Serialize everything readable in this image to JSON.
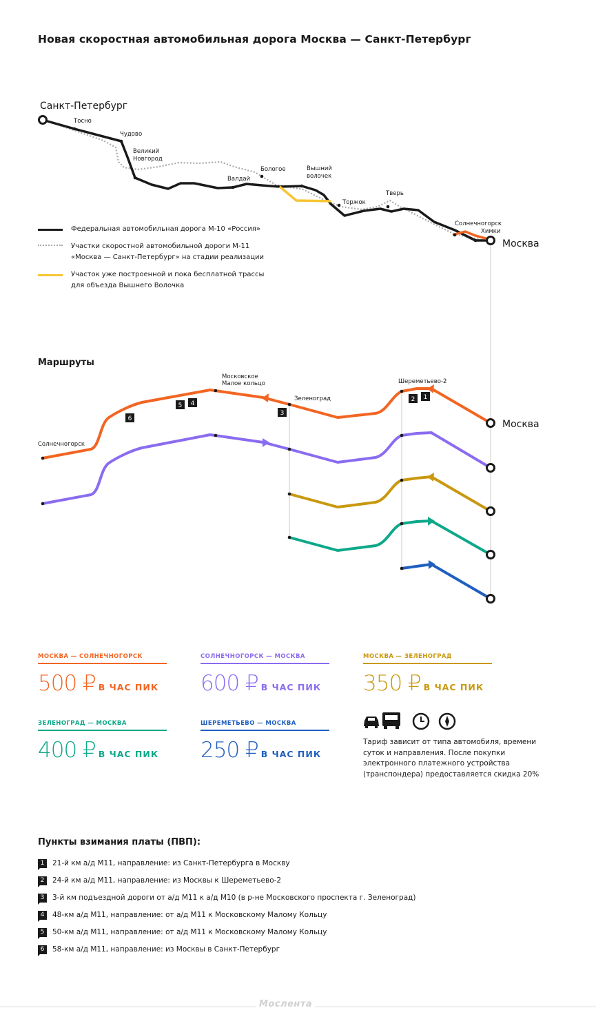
{
  "title": "Новая скоростная автомобильная дорога Москва — Санкт-Петербург",
  "map": {
    "cities": {
      "spb": "Санкт-Петербург",
      "tosno": "Тосно",
      "chudovo": "Чудово",
      "novgorod1": "Великий",
      "novgorod2": "Новгород",
      "valday": "Валдай",
      "bologoe": "Бологое",
      "volochek1": "Вышний",
      "volochek2": "волочек",
      "torzhok": "Торжок",
      "tver": "Тверь",
      "solnech": "Солнечногорск",
      "khimki": "Химки",
      "moscow": "Москва"
    },
    "legend": [
      {
        "label": "Федеральная автомобильная дорога М-10 «Россия»",
        "color": "#1a1a1a"
      },
      {
        "label": "Участки скоростной автомобильной дороги М-11",
        "label2": "«Москва — Санкт-Петербург» на стадии реализации",
        "color": "#a8a8a8"
      },
      {
        "label": "Участок уже построенной и пока бесплатной трассы",
        "label2": "для объезда Вышнего Волочка",
        "color": "#f6c533"
      }
    ]
  },
  "routes": {
    "heading": "Маршруты",
    "labels": {
      "solnech": "Солнечногорск",
      "mmk1": "Московское",
      "mmk2": "Малое кольцо",
      "zelenograd": "Зеленоград",
      "sheremetyevo": "Шереметьево-2",
      "moscow": "Москва"
    },
    "markers": [
      "1",
      "2",
      "3",
      "4",
      "5",
      "6"
    ],
    "colors": {
      "orange": "#f26522",
      "purple": "#8a6cf0",
      "gold": "#c9980f",
      "teal": "#0ea88a",
      "blue": "#1f5fbf"
    }
  },
  "prices": [
    {
      "route": "МОСКВА — СОЛНЕЧНОГОРСК",
      "value": "500 ₽",
      "peak": "В ЧАС ПИК",
      "color": "#f26522"
    },
    {
      "route": "СОЛНЕЧНОГОРСК — МОСКВА",
      "value": "600 ₽",
      "peak": "В ЧАС ПИК",
      "color": "#8a6cf0"
    },
    {
      "route": "МОСКВА — ЗЕЛЕНОГРАД",
      "value": "350 ₽",
      "peak": "В ЧАС ПИК",
      "color": "#c9980f"
    },
    {
      "route": "ЗЕЛЕНОГРАД — МОСКВА",
      "value": "400 ₽",
      "peak": "В ЧАС ПИК",
      "color": "#0ea88a"
    },
    {
      "route": "ШЕРЕМЕТЬЕВО — МОСКВА",
      "value": "250 ₽",
      "peak": "В ЧАС ПИК",
      "color": "#1f5fbf"
    }
  ],
  "tariff": {
    "icons": [
      "car-icon",
      "truck-icon",
      "clock-icon",
      "compass-icon"
    ],
    "text": "Тариф зависит от типа автомобиля, времени суток и направления. После покупки электронного платежного устройства (транспондера) предоставляется скидка 20%"
  },
  "pvp": {
    "title": "Пункты взимания платы (ПВП):",
    "items": [
      {
        "num": "1",
        "text": "21-й км а/д М11, направление: из Санкт-Петербурга в Москву"
      },
      {
        "num": "2",
        "text": "24-й км а/д М11, направление: из Москвы к Шереметьево-2"
      },
      {
        "num": "3",
        "text": "3-й км подъездной дороги от а/д М11 к а/д М10 (в р-не Московского проспекта г. Зеленоград)"
      },
      {
        "num": "4",
        "text": "48-км а/д М11, направление: от а/д М11 к Московскому Малому Кольцу"
      },
      {
        "num": "5",
        "text": "50-км а/д М11, направление: от а/д М11 к Московскому Малому Кольцу"
      },
      {
        "num": "6",
        "text": "58-км а/д М11, направление: из Москвы в Санкт-Петербург"
      }
    ]
  },
  "footer": {
    "logo": "Мослента"
  }
}
